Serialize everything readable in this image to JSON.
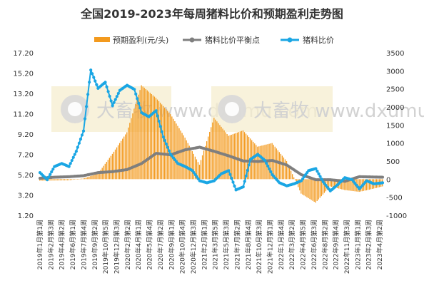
{
  "chart_data": {
    "type": "bar+line",
    "title": "全国2019-2023年每周猪料比价和预期盈利走势图",
    "legend": [
      {
        "name": "预期盈利(元/头)",
        "color": "#f39a1e",
        "marker": "bar"
      },
      {
        "name": "猪料比价平衡点",
        "color": "#7f7f7f",
        "marker": "line"
      },
      {
        "name": "猪料比价",
        "color": "#1aa6e4",
        "marker": "line"
      }
    ],
    "legend_position": "top-center",
    "watermark": "大畜牧 www.dxumu.com",
    "y_left": {
      "ticks": [
        "1.20",
        "3.20",
        "5.20",
        "7.20",
        "9.20",
        "11.20",
        "13.20",
        "15.20",
        "17.20"
      ],
      "min": 1.2,
      "max": 17.2
    },
    "y_right": {
      "ticks": [
        "-1000",
        "-500",
        "0",
        "500",
        "1000",
        "1500",
        "2000",
        "2500",
        "3000",
        "3500"
      ],
      "min": -1000,
      "max": 3500
    },
    "x_labels": [
      "2019年1月第1周",
      "2019年2月第3周",
      "2019年4月第2周",
      "2019年6月第1周",
      "2019年7月第4周",
      "2019年9月第2周",
      "2019年10月第5周",
      "2019年12月第3周",
      "2020年2月第2周",
      "2020年4月第1周",
      "2020年5月第4周",
      "2020年7月第2周",
      "2020年9月第1周",
      "2020年10月第4周",
      "2020年12月第3周",
      "2021年2月第1周",
      "2021年3月第5周",
      "2021年5月第3周",
      "2021年7月第2周",
      "2021年8月第4周",
      "2021年10月第3周",
      "2021年12月第1周",
      "2022年1月第4周",
      "2022年3月第2周",
      "2022年4月第5周",
      "2022年6月第3周",
      "2022年8月第2周",
      "2022年9月第4周",
      "2022年11月第3周",
      "2023年1月第1周",
      "2023年2月第3周",
      "2023年4月第2周"
    ],
    "x_label_start_week": 0,
    "x_label_step_weeks": 7.55,
    "week_count": 237,
    "profit_bars": {
      "name": "预期盈利(元/头)",
      "axis": "right",
      "week_index": [
        0,
        10,
        20,
        30,
        40,
        50,
        60,
        70,
        80,
        90,
        100,
        110,
        120,
        130,
        140,
        150,
        160,
        170,
        180,
        190,
        200,
        210,
        220,
        226,
        236
      ],
      "values": [
        -40,
        -35,
        -30,
        20,
        150,
        700,
        1300,
        2600,
        2250,
        1800,
        1150,
        400,
        1700,
        1200,
        1350,
        900,
        1000,
        500,
        -400,
        -650,
        -200,
        -300,
        -350,
        -300,
        -200
      ]
    },
    "breakeven": {
      "name": "猪料比价平衡点",
      "axis": "left",
      "week_index": [
        0,
        10,
        20,
        30,
        40,
        50,
        60,
        70,
        80,
        90,
        100,
        110,
        120,
        130,
        140,
        150,
        160,
        170,
        180,
        190,
        200,
        210,
        220,
        236
      ],
      "values": [
        4.85,
        4.95,
        5.0,
        5.1,
        5.4,
        5.5,
        5.7,
        6.3,
        7.3,
        7.15,
        7.65,
        7.9,
        7.5,
        7.05,
        6.55,
        6.5,
        6.6,
        6.15,
        5.2,
        4.7,
        4.7,
        4.55,
        5.0,
        4.95
      ]
    },
    "price_ratio": {
      "name": "猪料比价",
      "axis": "left",
      "week_index": [
        0,
        5,
        10,
        15,
        20,
        25,
        30,
        35,
        40,
        45,
        50,
        55,
        60,
        65,
        70,
        75,
        80,
        85,
        90,
        95,
        100,
        105,
        110,
        115,
        120,
        125,
        130,
        135,
        140,
        145,
        150,
        155,
        160,
        165,
        170,
        175,
        180,
        185,
        190,
        195,
        200,
        205,
        210,
        215,
        220,
        225,
        230,
        236
      ],
      "values": [
        5.4,
        4.7,
        6.0,
        6.3,
        6.0,
        7.5,
        9.5,
        15.5,
        13.7,
        14.3,
        12.0,
        13.5,
        14.0,
        13.6,
        11.3,
        10.9,
        11.5,
        8.9,
        7.2,
        6.3,
        6.0,
        5.6,
        4.6,
        4.4,
        4.6,
        5.3,
        5.6,
        3.7,
        4.0,
        6.7,
        7.2,
        6.6,
        5.2,
        4.4,
        4.1,
        4.3,
        4.6,
        5.6,
        5.8,
        4.5,
        3.6,
        4.2,
        4.9,
        4.7,
        3.8,
        4.6,
        4.3,
        4.4
      ]
    }
  }
}
